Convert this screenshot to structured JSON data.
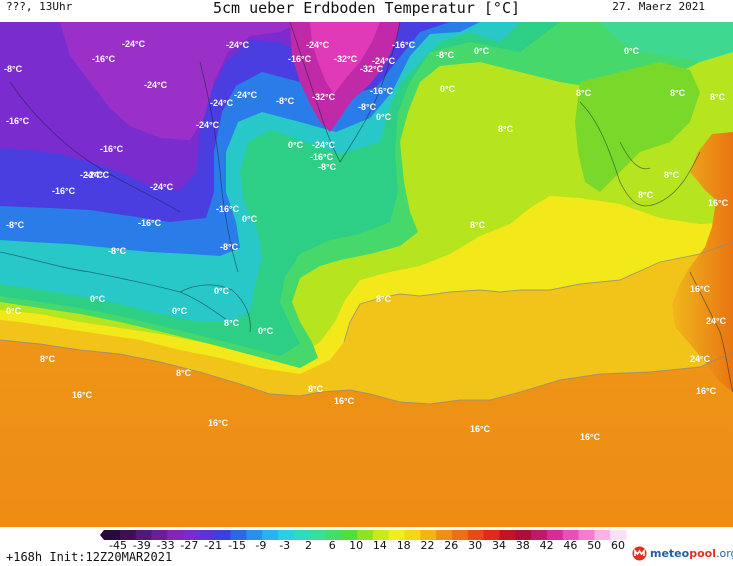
{
  "header": {
    "left": "???, 13Uhr",
    "title": "5cm ueber Erdboden Temperatur [°C]",
    "right": "27. Maerz 2021"
  },
  "map": {
    "labels": [
      {
        "text": "-16°C",
        "id": "a1"
      },
      {
        "text": "-24°C",
        "id": "a2"
      },
      {
        "text": "-24°C",
        "id": "a3"
      },
      {
        "text": "-24°C",
        "id": "a4"
      },
      {
        "text": "-16°C",
        "id": "a5"
      },
      {
        "text": "-32°C",
        "id": "a6"
      },
      {
        "text": "-32°C",
        "id": "a7"
      },
      {
        "text": "-24°C",
        "id": "a8"
      },
      {
        "text": "-16°C",
        "id": "a9"
      },
      {
        "text": "-8°C",
        "id": "a10"
      },
      {
        "text": "0°C",
        "id": "a11"
      },
      {
        "text": "0°C",
        "id": "a12"
      },
      {
        "text": "-8°C",
        "id": "b1"
      },
      {
        "text": "-16°C",
        "id": "b2"
      },
      {
        "text": "-24°C",
        "id": "b3"
      },
      {
        "text": "-24°C",
        "id": "b4"
      },
      {
        "text": "-24°C",
        "id": "b5"
      },
      {
        "text": "-8°C",
        "id": "b6"
      },
      {
        "text": "-32°C",
        "id": "b7"
      },
      {
        "text": "-16°C",
        "id": "b8"
      },
      {
        "text": "-8°C",
        "id": "b9"
      },
      {
        "text": "0°C",
        "id": "b10"
      },
      {
        "text": "0°C",
        "id": "b11"
      },
      {
        "text": "8°C",
        "id": "b12"
      },
      {
        "text": "8°C",
        "id": "b13"
      },
      {
        "text": "8°C",
        "id": "b14"
      },
      {
        "text": "-16°C",
        "id": "c1"
      },
      {
        "text": "-24°C",
        "id": "c2"
      },
      {
        "text": "-24°C",
        "id": "c3"
      },
      {
        "text": "0°C",
        "id": "c4"
      },
      {
        "text": "-24°C",
        "id": "c5"
      },
      {
        "text": "-16°C",
        "id": "c6"
      },
      {
        "text": "-8°C",
        "id": "c7"
      },
      {
        "text": "8°C",
        "id": "c8"
      },
      {
        "text": "-24°C",
        "id": "d1"
      },
      {
        "text": "-16°C",
        "id": "d2"
      },
      {
        "text": "-24°C",
        "id": "d3"
      },
      {
        "text": "8°C",
        "id": "d4"
      },
      {
        "text": "8°C",
        "id": "d5"
      },
      {
        "text": "-16°C",
        "id": "d6"
      },
      {
        "text": "16°C",
        "id": "d7"
      },
      {
        "text": "-8°C",
        "id": "e1"
      },
      {
        "text": "-16°C",
        "id": "e2"
      },
      {
        "text": "0°C",
        "id": "e3"
      },
      {
        "text": "8°C",
        "id": "e4"
      },
      {
        "text": "-8°C",
        "id": "e5"
      },
      {
        "text": "-8°C",
        "id": "e6"
      },
      {
        "text": "0°C",
        "id": "f1"
      },
      {
        "text": "0°C",
        "id": "f2"
      },
      {
        "text": "0°C",
        "id": "f3"
      },
      {
        "text": "8°C",
        "id": "f4"
      },
      {
        "text": "16°C",
        "id": "f5"
      },
      {
        "text": "0°C",
        "id": "g1"
      },
      {
        "text": "0°C",
        "id": "g2"
      },
      {
        "text": "8°C",
        "id": "g3"
      },
      {
        "text": "24°C",
        "id": "g4"
      },
      {
        "text": "8°C",
        "id": "h1"
      },
      {
        "text": "8°C",
        "id": "h2"
      },
      {
        "text": "24°C",
        "id": "h3"
      },
      {
        "text": "8°C",
        "id": "i1"
      },
      {
        "text": "16°C",
        "id": "i2"
      },
      {
        "text": "16°C",
        "id": "i3"
      },
      {
        "text": "16°C",
        "id": "i4"
      },
      {
        "text": "16°C",
        "id": "j1"
      },
      {
        "text": "16°C",
        "id": "j2"
      },
      {
        "text": "16°C",
        "id": "j3"
      }
    ]
  },
  "legend": {
    "ticks": [
      "-45",
      "-39",
      "-33",
      "-27",
      "-21",
      "-15",
      "-9",
      "-3",
      "2",
      "6",
      "10",
      "14",
      "18",
      "22",
      "26",
      "30",
      "34",
      "38",
      "42",
      "46",
      "50",
      "60"
    ],
    "colors": [
      "#2a0a3a",
      "#3e0f55",
      "#551775",
      "#6b1e95",
      "#8226b5",
      "#7a2ad0",
      "#5a34d8",
      "#3c3fe0",
      "#2e66e8",
      "#2a8eef",
      "#25b4ef",
      "#26d2e0",
      "#2bdcc0",
      "#36e097",
      "#3fe06a",
      "#52de3a",
      "#8de422",
      "#c8ea1a",
      "#f0ee1c",
      "#f4d716",
      "#f2b412",
      "#f09012",
      "#ee6e14",
      "#e84a18",
      "#e02a1c",
      "#c41422",
      "#b00e3a",
      "#c0186a",
      "#d82a9a",
      "#ec4cbc",
      "#f57ad2",
      "#fbb2e6",
      "#fde0f4"
    ]
  },
  "footer": {
    "left": "+168h Init:12Z20MAR2021",
    "brand_main": "meteo",
    "brand_pool": "pool",
    "brand_org": ".org"
  }
}
